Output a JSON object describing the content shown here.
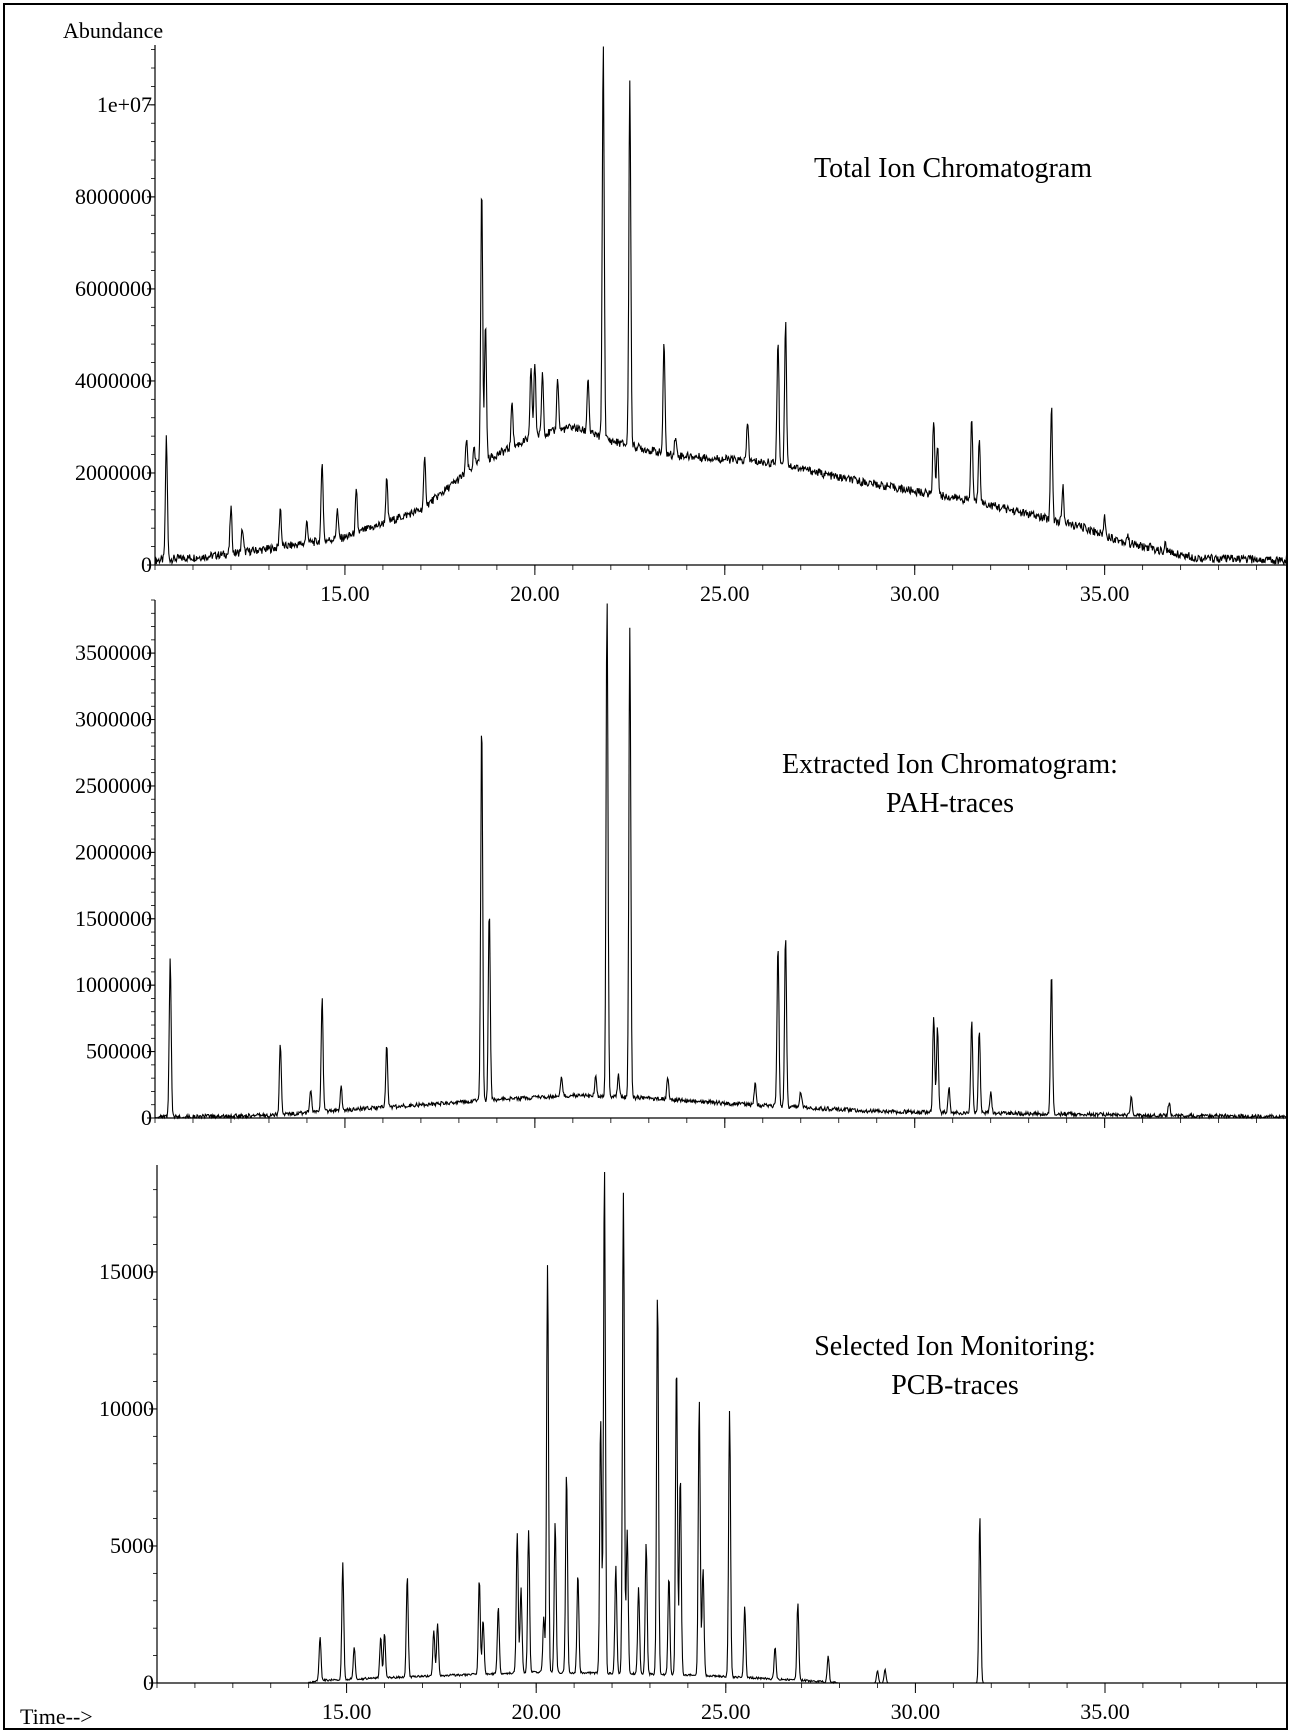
{
  "abundance_label": "Abundance",
  "time_label": "Time-->",
  "chart_data": [
    {
      "type": "line",
      "title": "Total Ion Chromatogram",
      "xlabel": "Time-->",
      "ylabel": "Abundance",
      "xlim": [
        10.0,
        39.8
      ],
      "ylim": [
        0,
        11300000
      ],
      "x_ticks": [
        "15.00",
        "20.00",
        "25.00",
        "30.00",
        "35.00"
      ],
      "x_tick_values": [
        15,
        20,
        25,
        30,
        35
      ],
      "y_ticks": [
        "0",
        "2000000",
        "4000000",
        "6000000",
        "8000000",
        "1e+07"
      ],
      "y_tick_values": [
        0,
        2000000,
        4000000,
        6000000,
        8000000,
        10000000
      ],
      "y_minor_step": 400000,
      "baseline": [
        [
          10.0,
          100000
        ],
        [
          11.5,
          200000
        ],
        [
          13.0,
          350000
        ],
        [
          15.0,
          600000
        ],
        [
          17.0,
          1200000
        ],
        [
          18.5,
          2200000
        ],
        [
          20.0,
          2800000
        ],
        [
          21.0,
          3000000
        ],
        [
          22.0,
          2700000
        ],
        [
          23.5,
          2400000
        ],
        [
          25.0,
          2300000
        ],
        [
          26.5,
          2200000
        ],
        [
          28.0,
          1900000
        ],
        [
          30.0,
          1600000
        ],
        [
          31.5,
          1400000
        ],
        [
          33.0,
          1100000
        ],
        [
          34.5,
          800000
        ],
        [
          35.5,
          500000
        ],
        [
          36.5,
          300000
        ],
        [
          37.5,
          150000
        ],
        [
          39.8,
          100000
        ]
      ],
      "peaks": [
        [
          10.3,
          2800000
        ],
        [
          12.0,
          1250000
        ],
        [
          12.3,
          800000
        ],
        [
          13.3,
          1250000
        ],
        [
          14.0,
          950000
        ],
        [
          14.4,
          2300000
        ],
        [
          14.8,
          1200000
        ],
        [
          15.3,
          1600000
        ],
        [
          16.1,
          1850000
        ],
        [
          17.1,
          2300000
        ],
        [
          18.2,
          2700000
        ],
        [
          18.4,
          2500000
        ],
        [
          18.6,
          8300000
        ],
        [
          18.7,
          5300000
        ],
        [
          19.4,
          3600000
        ],
        [
          19.9,
          4300000
        ],
        [
          20.0,
          4400000
        ],
        [
          20.2,
          4200000
        ],
        [
          20.6,
          4100000
        ],
        [
          21.4,
          4100000
        ],
        [
          21.8,
          11300000
        ],
        [
          22.5,
          10600000
        ],
        [
          23.4,
          4800000
        ],
        [
          23.7,
          2800000
        ],
        [
          25.6,
          3100000
        ],
        [
          26.4,
          4900000
        ],
        [
          26.6,
          5300000
        ],
        [
          30.5,
          3200000
        ],
        [
          30.6,
          2600000
        ],
        [
          31.5,
          3200000
        ],
        [
          31.7,
          2800000
        ],
        [
          33.6,
          3500000
        ],
        [
          33.9,
          1700000
        ],
        [
          35.0,
          1050000
        ],
        [
          35.6,
          650000
        ],
        [
          36.2,
          400000
        ],
        [
          36.6,
          450000
        ]
      ]
    },
    {
      "type": "line",
      "title": "Extracted Ion Chromatogram:",
      "subtitle": "PAH-traces",
      "xlim": [
        10.0,
        39.8
      ],
      "ylim": [
        0,
        3900000
      ],
      "x_ticks": [],
      "x_tick_values": [
        15,
        20,
        25,
        30,
        35
      ],
      "y_ticks": [
        "0",
        "500000",
        "1000000",
        "1500000",
        "2000000",
        "2500000",
        "3000000",
        "3500000"
      ],
      "y_tick_values": [
        0,
        500000,
        1000000,
        1500000,
        2000000,
        2500000,
        3000000,
        3500000
      ],
      "y_minor_step": 100000,
      "baseline": [
        [
          10.0,
          5000
        ],
        [
          13.0,
          20000
        ],
        [
          15.0,
          60000
        ],
        [
          17.0,
          100000
        ],
        [
          19.0,
          140000
        ],
        [
          21.0,
          170000
        ],
        [
          23.0,
          150000
        ],
        [
          25.0,
          110000
        ],
        [
          27.0,
          80000
        ],
        [
          29.0,
          50000
        ],
        [
          31.0,
          40000
        ],
        [
          34.0,
          30000
        ],
        [
          36.0,
          20000
        ],
        [
          39.8,
          10000
        ]
      ],
      "peaks": [
        [
          10.4,
          1200000
        ],
        [
          13.3,
          560000
        ],
        [
          14.1,
          200000
        ],
        [
          14.4,
          920000
        ],
        [
          14.9,
          230000
        ],
        [
          16.1,
          550000
        ],
        [
          18.6,
          3000000
        ],
        [
          18.8,
          1580000
        ],
        [
          20.7,
          310000
        ],
        [
          21.6,
          310000
        ],
        [
          21.9,
          3900000
        ],
        [
          22.2,
          320000
        ],
        [
          22.5,
          3700000
        ],
        [
          23.5,
          310000
        ],
        [
          25.8,
          270000
        ],
        [
          26.4,
          1300000
        ],
        [
          26.6,
          1380000
        ],
        [
          27.0,
          200000
        ],
        [
          30.5,
          780000
        ],
        [
          30.6,
          680000
        ],
        [
          30.9,
          230000
        ],
        [
          31.5,
          730000
        ],
        [
          31.7,
          660000
        ],
        [
          32.0,
          190000
        ],
        [
          33.6,
          1100000
        ],
        [
          35.7,
          150000
        ],
        [
          36.7,
          120000
        ]
      ]
    },
    {
      "type": "line",
      "title": "Selected Ion Monitoring:",
      "subtitle": "PCB-traces",
      "xlim": [
        10.0,
        39.8
      ],
      "ylim": [
        0,
        18900
      ],
      "x_ticks": [
        "15.00",
        "20.00",
        "25.00",
        "30.00",
        "35.00"
      ],
      "x_tick_values": [
        15,
        20,
        25,
        30,
        35
      ],
      "y_ticks": [
        "0",
        "5000",
        "10000",
        "15000"
      ],
      "y_tick_values": [
        0,
        5000,
        10000,
        15000
      ],
      "y_minor_step": 1000,
      "baseline": [
        [
          10.0,
          0
        ],
        [
          14.0,
          0
        ],
        [
          14.3,
          100
        ],
        [
          20.0,
          400
        ],
        [
          24.0,
          300
        ],
        [
          27.0,
          100
        ],
        [
          28.0,
          0
        ],
        [
          39.8,
          0
        ]
      ],
      "peaks": [
        [
          14.3,
          1700
        ],
        [
          14.9,
          4400
        ],
        [
          15.2,
          1300
        ],
        [
          15.9,
          1700
        ],
        [
          16.0,
          1800
        ],
        [
          16.6,
          3900
        ],
        [
          17.3,
          1900
        ],
        [
          17.4,
          2200
        ],
        [
          18.5,
          3800
        ],
        [
          18.6,
          2300
        ],
        [
          19.0,
          2800
        ],
        [
          19.5,
          5500
        ],
        [
          19.6,
          3500
        ],
        [
          19.8,
          5600
        ],
        [
          20.2,
          2400
        ],
        [
          20.3,
          15300
        ],
        [
          20.5,
          5900
        ],
        [
          20.8,
          7700
        ],
        [
          21.1,
          4000
        ],
        [
          21.7,
          9700
        ],
        [
          21.8,
          18900
        ],
        [
          22.1,
          4300
        ],
        [
          22.3,
          17900
        ],
        [
          22.4,
          5600
        ],
        [
          22.7,
          3500
        ],
        [
          22.9,
          5100
        ],
        [
          23.2,
          14300
        ],
        [
          23.5,
          3900
        ],
        [
          23.7,
          11700
        ],
        [
          23.8,
          7600
        ],
        [
          24.3,
          10400
        ],
        [
          24.4,
          4200
        ],
        [
          25.1,
          9900
        ],
        [
          25.5,
          2800
        ],
        [
          26.3,
          1300
        ],
        [
          26.9,
          2900
        ],
        [
          27.7,
          1000
        ],
        [
          29.0,
          450
        ],
        [
          29.2,
          500
        ],
        [
          31.7,
          6100
        ]
      ]
    }
  ]
}
